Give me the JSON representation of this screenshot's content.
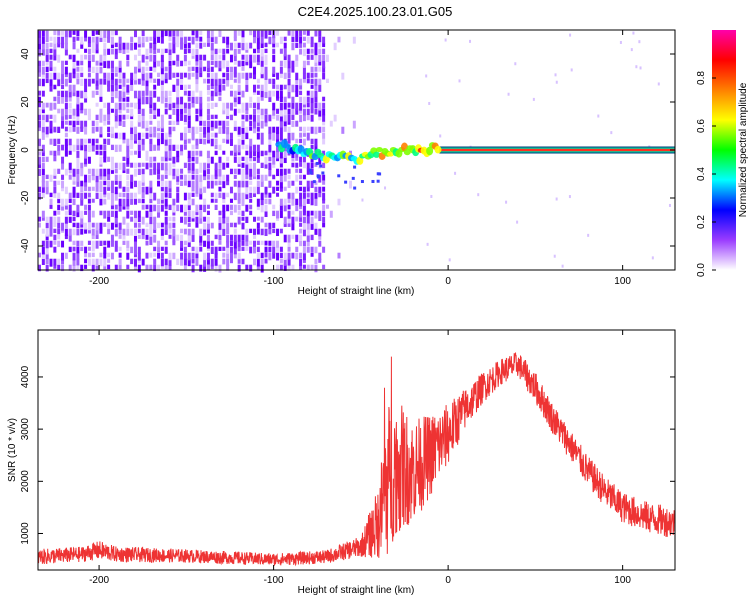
{
  "title": "C2E4.2025.100.23.01.G05",
  "chart_data": [
    {
      "type": "heatmap",
      "xlabel": "Height of straight line (km)",
      "ylabel": "Frequency (Hz)",
      "xlim": [
        -235,
        130
      ],
      "ylim": [
        -50,
        50
      ],
      "xticks": [
        -200,
        -100,
        0,
        100
      ],
      "yticks": [
        -40,
        -20,
        0,
        20,
        40
      ],
      "noise_region_x": [
        -235,
        -72
      ],
      "sparse_noise_x": [
        -72,
        -50
      ],
      "signal": {
        "frequency": 0,
        "onset_x": -97,
        "stable_from_x": -5,
        "wander_points": [
          {
            "x": -97,
            "f": 2
          },
          {
            "x": -85,
            "f": -1
          },
          {
            "x": -75,
            "f": -2
          },
          {
            "x": -65,
            "f": -3
          },
          {
            "x": -55,
            "f": -4
          },
          {
            "x": -45,
            "f": -2
          },
          {
            "x": -30,
            "f": 0
          },
          {
            "x": -15,
            "f": 0
          },
          {
            "x": -5,
            "f": 1
          },
          {
            "x": 130,
            "f": 0
          }
        ]
      },
      "colorbar": {
        "label": "Normalized spectral amplitude",
        "range": [
          0,
          1
        ],
        "ticks": [
          0.0,
          0.2,
          0.4,
          0.6,
          0.8
        ],
        "tick_labels": [
          "0.0",
          "0.2",
          "0.4",
          "0.6",
          "0.8"
        ],
        "colormap": [
          "#ffffff",
          "#9a3cff",
          "#0000ff",
          "#00ffff",
          "#00ff00",
          "#ffff00",
          "#ff8000",
          "#ff0000",
          "#ff00aa"
        ]
      }
    },
    {
      "type": "line",
      "xlabel": "Height of straight line (km)",
      "ylabel": "SNR (10 * v/v)",
      "xlim": [
        -235,
        130
      ],
      "ylim": [
        300,
        4900
      ],
      "xticks": [
        -200,
        -100,
        0,
        100
      ],
      "yticks": [
        1000,
        2000,
        3000,
        4000
      ],
      "color": "#ee3333",
      "envelope": [
        {
          "x": -235,
          "base": 550,
          "noise": 150
        },
        {
          "x": -210,
          "base": 600,
          "noise": 150
        },
        {
          "x": -200,
          "base": 680,
          "noise": 180
        },
        {
          "x": -190,
          "base": 600,
          "noise": 150
        },
        {
          "x": -150,
          "base": 570,
          "noise": 130
        },
        {
          "x": -100,
          "base": 500,
          "noise": 120
        },
        {
          "x": -70,
          "base": 550,
          "noise": 130
        },
        {
          "x": -50,
          "base": 750,
          "noise": 200
        },
        {
          "x": -40,
          "base": 1200,
          "noise": 700
        },
        {
          "x": -35,
          "base": 2000,
          "noise": 1500
        },
        {
          "x": -30,
          "base": 2300,
          "noise": 1300
        },
        {
          "x": -20,
          "base": 2200,
          "noise": 1000
        },
        {
          "x": -10,
          "base": 2500,
          "noise": 800
        },
        {
          "x": 0,
          "base": 2900,
          "noise": 600
        },
        {
          "x": 10,
          "base": 3400,
          "noise": 400
        },
        {
          "x": 20,
          "base": 3800,
          "noise": 300
        },
        {
          "x": 30,
          "base": 4100,
          "noise": 250
        },
        {
          "x": 40,
          "base": 4250,
          "noise": 250
        },
        {
          "x": 50,
          "base": 3800,
          "noise": 300
        },
        {
          "x": 60,
          "base": 3200,
          "noise": 300
        },
        {
          "x": 70,
          "base": 2700,
          "noise": 300
        },
        {
          "x": 80,
          "base": 2200,
          "noise": 300
        },
        {
          "x": 90,
          "base": 1800,
          "noise": 300
        },
        {
          "x": 100,
          "base": 1500,
          "noise": 300
        },
        {
          "x": 115,
          "base": 1300,
          "noise": 300
        },
        {
          "x": 130,
          "base": 1200,
          "noise": 300
        }
      ]
    }
  ]
}
